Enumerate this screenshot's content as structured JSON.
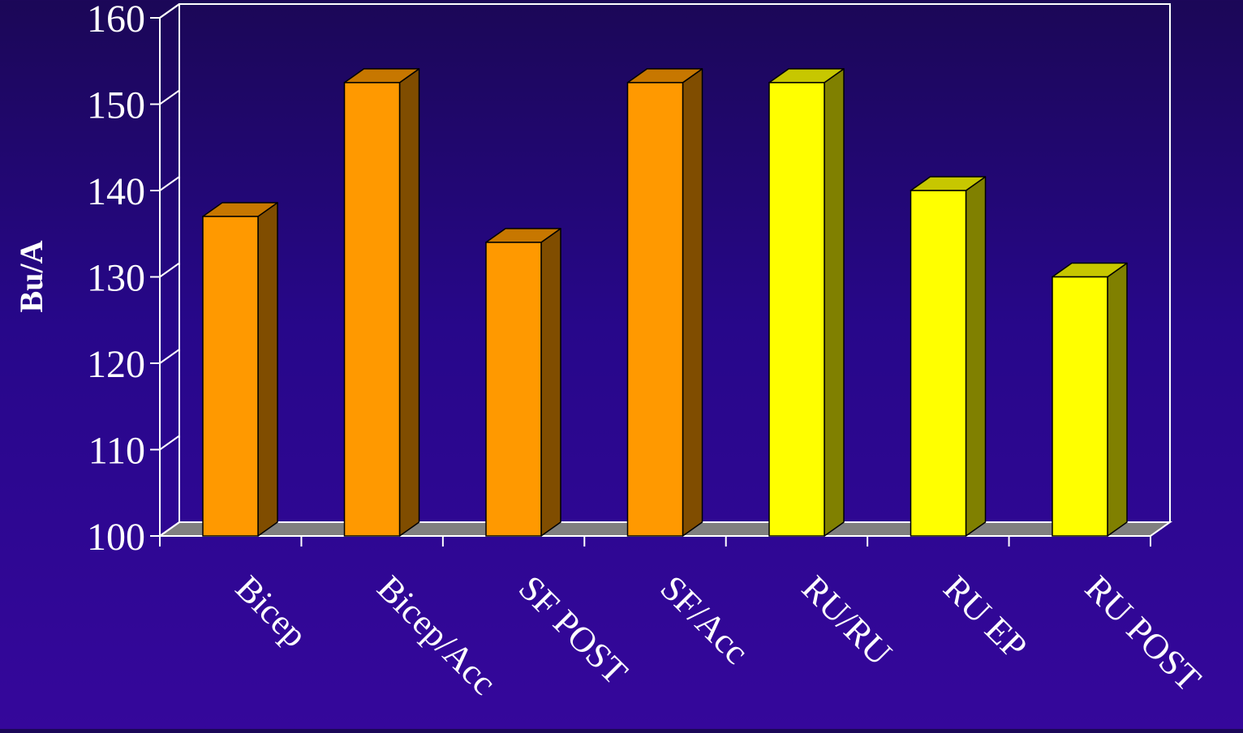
{
  "chart_data": {
    "type": "bar",
    "title": "",
    "xlabel": "",
    "ylabel": "Bu/A",
    "ylim": [
      100,
      160
    ],
    "yticks": [
      100,
      110,
      120,
      130,
      140,
      150,
      160
    ],
    "grid": false,
    "legend": "none",
    "three_d": true,
    "categories": [
      "Bicep",
      "Bicep/Acc",
      "SF POST",
      "SF/Acc",
      "RU/RU",
      "RU EP",
      "RU POST"
    ],
    "values": [
      137,
      152.5,
      134,
      152.5,
      152.5,
      140,
      130
    ],
    "colors": {
      "orange": "#ff9900",
      "yellow": "#ffff00",
      "axis": "#ffffff",
      "floor": "#808080",
      "background": "#2a0790"
    },
    "bar_color_groups": [
      "orange",
      "orange",
      "orange",
      "orange",
      "yellow",
      "yellow",
      "yellow"
    ]
  }
}
